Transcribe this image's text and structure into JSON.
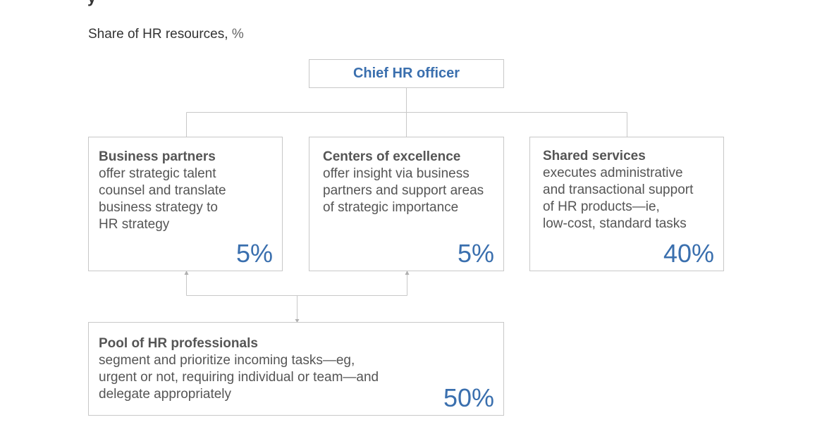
{
  "header": {
    "cut_title": "y",
    "subtitle": "Share of HR resources,",
    "subtitle_unit": "%"
  },
  "chief": {
    "label": "Chief HR officer"
  },
  "boxes": {
    "business_partners": {
      "title": "Business partners",
      "lines": [
        "offer strategic talent",
        "counsel and translate",
        "business strategy to",
        "HR strategy"
      ],
      "share": "5%"
    },
    "centers_of_excellence": {
      "title": "Centers of excellence",
      "lines": [
        "offer insight via business",
        "partners and support areas",
        "of strategic importance"
      ],
      "share": "5%"
    },
    "shared_services": {
      "title": "Shared services",
      "lines": [
        "executes administrative",
        "and transactional support",
        "of HR products—ie,",
        "low-cost, standard tasks"
      ],
      "share": "40%"
    },
    "pool": {
      "title": "Pool of HR professionals",
      "lines": [
        "segment and prioritize incoming tasks—eg,",
        "urgent or not, requiring individual or team—and",
        "delegate appropriately"
      ],
      "share": "50%"
    }
  },
  "colors": {
    "accent": "#3a6fae",
    "border": "#c8c8c8",
    "text": "#555555"
  }
}
